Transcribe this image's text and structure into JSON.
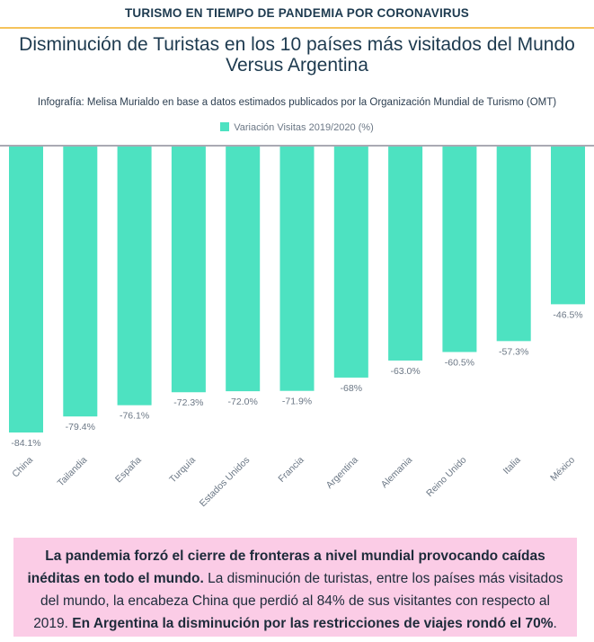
{
  "header": {
    "kicker": "TURISMO EN TIEMPO DE PANDEMIA POR CORONAVIRUS"
  },
  "chart_data": {
    "type": "bar",
    "title": "Disminución de Turistas en los 10 países más visitados del Mundo Versus Argentina",
    "subtitle": "Infografía: Melisa Murialdo en base a datos estimados publicados por la Organización Mundial de Turismo (OMT)",
    "categories": [
      "China",
      "Tailandia",
      "España",
      "Turquía",
      "Estados Unidos",
      "Francia",
      "Argentina",
      "Alemania",
      "Reino Unido",
      "Italia",
      "México"
    ],
    "series": [
      {
        "name": "Variación Visitas 2019/2020 (%)",
        "values": [
          -84.1,
          -79.4,
          -76.1,
          -72.3,
          -72.0,
          -71.9,
          -68,
          -63.0,
          -60.5,
          -57.3,
          -46.5
        ],
        "labels": [
          "-84.1%",
          "-79.4%",
          "-76.1%",
          "-72.3%",
          "-72.0%",
          "-71.9%",
          "-68%",
          "-63.0%",
          "-60.5%",
          "-57.3%",
          "-46.5%"
        ]
      }
    ],
    "ylim": [
      -84.1,
      0
    ],
    "legend": "top",
    "grid": false,
    "colors": {
      "bar": "#4de2c1",
      "axis": "#a9a9b3"
    }
  },
  "note": {
    "p1_bold": "La pandemia forzó el cierre de fronteras a nivel mundial provocando caídas inéditas en todo el mundo.",
    "p2": " La disminución de turistas, entre los países más visitados del mundo, la encabeza China que perdió al 84% de sus visitantes con respecto al 2019. ",
    "p3_bold": "En Argentina la disminución por las restricciones de viajes rondó el 70%",
    "p4": "."
  }
}
